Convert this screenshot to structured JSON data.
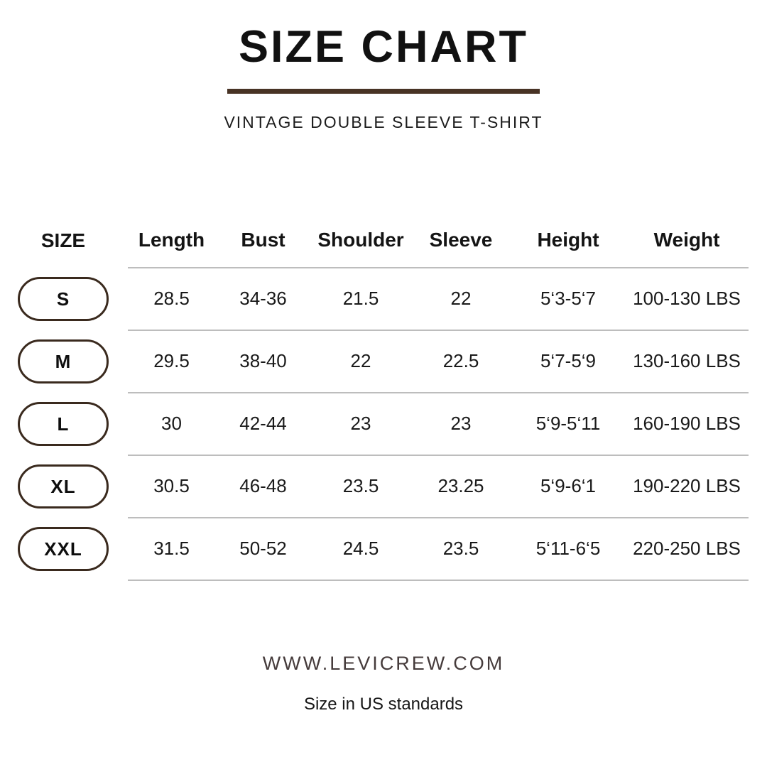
{
  "header": {
    "title": "SIZE CHART",
    "subtitle": "VINTAGE DOUBLE SLEEVE T-SHIRT"
  },
  "table": {
    "columns": [
      "SIZE",
      "Length",
      "Bust",
      "Shoulder",
      "Sleeve",
      "Height",
      "Weight"
    ],
    "rows": [
      {
        "size": "S",
        "values": [
          "28.5",
          "34-36",
          "21.5",
          "22",
          "5‘3-5‘7",
          "100-130 LBS"
        ]
      },
      {
        "size": "M",
        "values": [
          "29.5",
          "38-40",
          "22",
          "22.5",
          "5‘7-5‘9",
          "130-160 LBS"
        ]
      },
      {
        "size": "L",
        "values": [
          "30",
          "42-44",
          "23",
          "23",
          "5‘9-5‘11",
          "160-190 LBS"
        ]
      },
      {
        "size": "XL",
        "values": [
          "30.5",
          "46-48",
          "23.5",
          "23.25",
          "5‘9-6‘1",
          "190-220 LBS"
        ]
      },
      {
        "size": "XXL",
        "values": [
          "31.5",
          "50-52",
          "24.5",
          "23.5",
          "5‘11-6‘5",
          "220-250 LBS"
        ]
      }
    ]
  },
  "footer": {
    "website": "WWW.LEVICREW.COM",
    "note": "Size in US standards"
  },
  "colors": {
    "accent_brown": "#483325",
    "pill_border": "#3a2a1e",
    "divider_gray": "#bdbdbd",
    "text": "#151515",
    "website_text": "#453b3b"
  },
  "chart_data": {
    "type": "table",
    "title": "SIZE CHART",
    "subtitle": "VINTAGE DOUBLE SLEEVE T-SHIRT",
    "columns": [
      "SIZE",
      "Length",
      "Bust",
      "Shoulder",
      "Sleeve",
      "Height",
      "Weight"
    ],
    "rows": [
      [
        "S",
        "28.5",
        "34-36",
        "21.5",
        "22",
        "5‘3-5‘7",
        "100-130 LBS"
      ],
      [
        "M",
        "29.5",
        "38-40",
        "22",
        "22.5",
        "5‘7-5‘9",
        "130-160 LBS"
      ],
      [
        "L",
        "30",
        "42-44",
        "23",
        "23",
        "5‘9-5‘11",
        "160-190 LBS"
      ],
      [
        "XL",
        "30.5",
        "46-48",
        "23.5",
        "23.25",
        "5‘9-6‘1",
        "190-220 LBS"
      ],
      [
        "XXL",
        "31.5",
        "50-52",
        "24.5",
        "23.5",
        "5‘11-6‘5",
        "220-250 LBS"
      ]
    ]
  }
}
